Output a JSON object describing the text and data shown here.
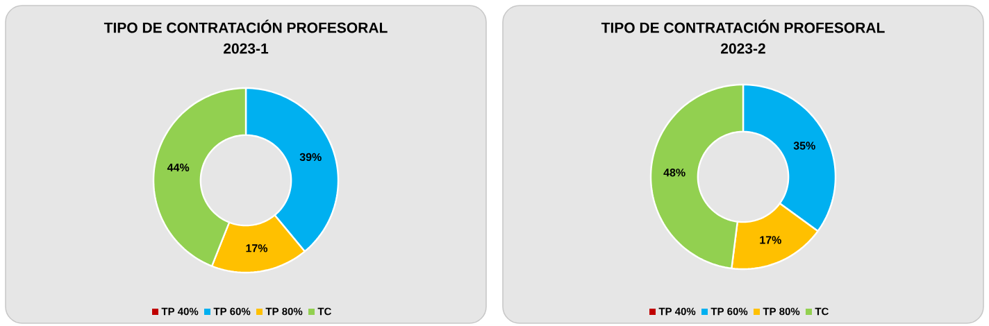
{
  "chart_data": [
    {
      "type": "donut",
      "title": "TIPO DE CONTRATACIÓN  PROFESORAL",
      "subtitle": "2023-1",
      "categories": [
        "TP 40%",
        "TP 60%",
        "TP 80%",
        "TC"
      ],
      "values": [
        0,
        39,
        17,
        44
      ],
      "colors": [
        "#c00000",
        "#00b0f0",
        "#ffc000",
        "#92d050"
      ],
      "value_labels": [
        null,
        "39%",
        "17%",
        "44%"
      ],
      "legend": "bottom"
    },
    {
      "type": "donut",
      "title": "TIPO DE CONTRATACIÓN  PROFESORAL",
      "subtitle": "2023-2",
      "categories": [
        "TP 40%",
        "TP 60%",
        "TP 80%",
        "TC"
      ],
      "values": [
        0,
        35,
        17,
        48
      ],
      "colors": [
        "#c00000",
        "#00b0f0",
        "#ffc000",
        "#92d050"
      ],
      "value_labels": [
        null,
        "35%",
        "17%",
        "48%"
      ],
      "legend": "bottom"
    }
  ]
}
